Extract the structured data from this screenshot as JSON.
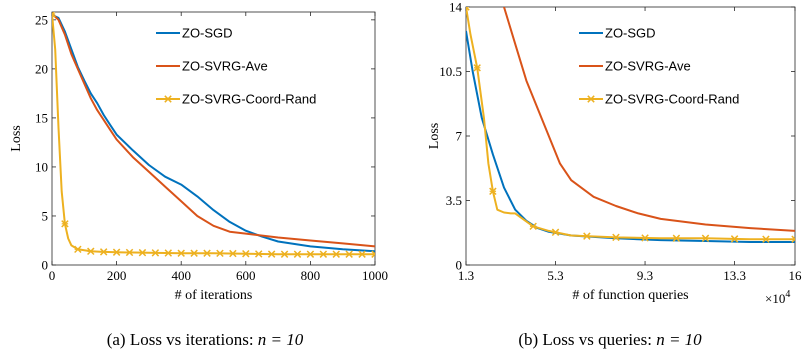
{
  "captions": [
    {
      "text": "(a) Loss vs iterations: ",
      "math": "n = 10"
    },
    {
      "text": "(b) Loss vs queries: ",
      "math": "n = 10"
    }
  ],
  "chart_data": [
    {
      "type": "line",
      "xlabel": "# of iterations",
      "ylabel": "Loss",
      "xlim": [
        0,
        1000
      ],
      "ylim": [
        0,
        25.8
      ],
      "xticks": [
        0,
        200,
        400,
        600,
        800,
        1000
      ],
      "xtick_labels": [
        "0",
        "200",
        "400",
        "600",
        "800",
        "1000"
      ],
      "yticks": [
        0,
        5,
        10,
        15,
        20,
        25
      ],
      "ytick_labels": [
        "0",
        "5",
        "10",
        "15",
        "20",
        "25"
      ],
      "grid": false,
      "legend_position": "top-right",
      "series": [
        {
          "name": "ZO-SGD",
          "color": "#0072BD",
          "marker": "none",
          "x": [
            0,
            20,
            40,
            60,
            80,
            100,
            120,
            140,
            160,
            180,
            200,
            250,
            300,
            350,
            400,
            450,
            500,
            550,
            600,
            650,
            700,
            800,
            900,
            1000
          ],
          "y": [
            25.5,
            25.2,
            23.8,
            22.0,
            20.2,
            18.8,
            17.5,
            16.5,
            15.3,
            14.3,
            13.3,
            11.7,
            10.2,
            9.0,
            8.2,
            7.0,
            5.6,
            4.4,
            3.5,
            2.9,
            2.4,
            1.9,
            1.6,
            1.4
          ]
        },
        {
          "name": "ZO-SVRG-Ave",
          "color": "#D95319",
          "marker": "none",
          "x": [
            0,
            20,
            40,
            60,
            80,
            100,
            120,
            140,
            160,
            180,
            200,
            250,
            300,
            350,
            400,
            450,
            500,
            550,
            600,
            700,
            800,
            900,
            1000
          ],
          "y": [
            25.6,
            25.0,
            23.5,
            21.5,
            20.0,
            18.5,
            17.0,
            15.8,
            14.8,
            13.8,
            12.8,
            11.0,
            9.5,
            8.0,
            6.5,
            5.0,
            4.0,
            3.4,
            3.2,
            2.8,
            2.5,
            2.2,
            1.9
          ]
        },
        {
          "name": "ZO-SVRG-Coord-Rand",
          "color": "#EDB120",
          "marker": "x",
          "x": [
            0,
            10,
            20,
            30,
            40,
            50,
            60,
            80,
            100,
            120,
            150,
            200,
            300,
            400,
            500,
            600,
            700,
            800,
            900,
            1000
          ],
          "y": [
            25.6,
            22.0,
            14.0,
            7.5,
            4.2,
            2.7,
            2.0,
            1.6,
            1.5,
            1.4,
            1.35,
            1.3,
            1.25,
            1.2,
            1.2,
            1.15,
            1.1,
            1.1,
            1.1,
            1.1
          ],
          "marker_x": [
            0,
            40,
            80,
            120,
            160,
            200,
            240,
            280,
            320,
            360,
            400,
            440,
            480,
            520,
            560,
            600,
            640,
            680,
            720,
            760,
            800,
            840,
            880,
            920,
            960,
            1000
          ]
        }
      ]
    },
    {
      "type": "line",
      "xlabel": "# of function queries",
      "ylabel": "Loss",
      "x_multiplier": "×10^4",
      "xlim": [
        1.3,
        16
      ],
      "ylim": [
        0,
        14
      ],
      "xticks": [
        1.3,
        5.3,
        9.3,
        13.3,
        16
      ],
      "xtick_labels": [
        "1.3",
        "5.3",
        "9.3",
        "13.3",
        "16"
      ],
      "yticks": [
        0,
        3.5,
        7,
        10.5,
        14
      ],
      "ytick_labels": [
        "0",
        "3.5",
        "7",
        "10.5",
        "14"
      ],
      "grid": false,
      "legend_position": "top-right",
      "series": [
        {
          "name": "ZO-SGD",
          "color": "#0072BD",
          "marker": "none",
          "x": [
            1.3,
            1.6,
            2.0,
            2.5,
            3.0,
            3.5,
            4.0,
            4.5,
            5.0,
            6.0,
            8.0,
            10.0,
            12.0,
            14.0,
            16.0
          ],
          "y": [
            12.7,
            10.5,
            8.0,
            6.0,
            4.2,
            3.0,
            2.4,
            2.0,
            1.8,
            1.6,
            1.45,
            1.35,
            1.3,
            1.25,
            1.25
          ]
        },
        {
          "name": "ZO-SVRG-Ave",
          "color": "#D95319",
          "marker": "none",
          "x": [
            3.0,
            3.5,
            4.0,
            4.5,
            5.0,
            5.5,
            6.0,
            7.0,
            8.0,
            9.0,
            10.0,
            12.0,
            14.0,
            16.0
          ],
          "y": [
            14.0,
            12.0,
            10.0,
            8.5,
            7.0,
            5.5,
            4.6,
            3.7,
            3.2,
            2.8,
            2.5,
            2.2,
            2.0,
            1.85
          ]
        },
        {
          "name": "ZO-SVRG-Coord-Rand",
          "color": "#EDB120",
          "marker": "x",
          "x": [
            1.3,
            1.5,
            1.8,
            2.1,
            2.3,
            2.5,
            2.7,
            3.0,
            3.3,
            3.5,
            4.3,
            5.0,
            6.0,
            8.0,
            10.0,
            12.0,
            14.0,
            16.0
          ],
          "y": [
            14.0,
            12.5,
            10.7,
            8.0,
            5.5,
            4.0,
            3.0,
            2.85,
            2.8,
            2.8,
            2.1,
            1.85,
            1.6,
            1.5,
            1.45,
            1.45,
            1.4,
            1.4
          ],
          "marker_x": [
            1.3,
            1.8,
            2.5,
            4.3,
            5.3,
            6.7,
            8.0,
            9.3,
            10.7,
            12.0,
            13.3,
            14.7,
            16.0
          ]
        }
      ]
    }
  ]
}
